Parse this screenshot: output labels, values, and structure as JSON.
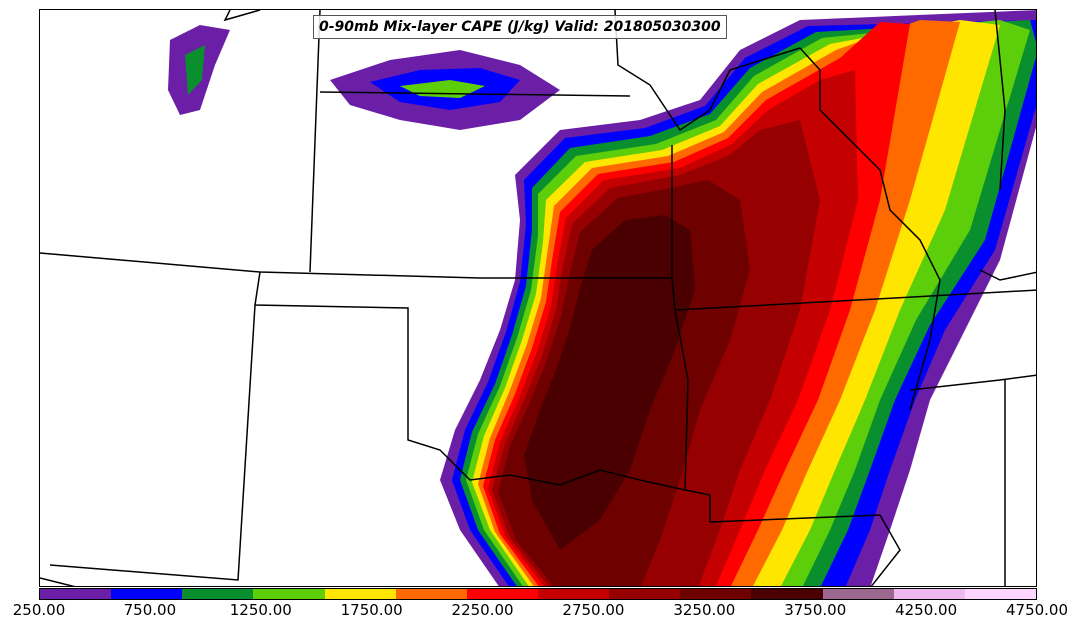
{
  "title": "0-90mb Mix-layer CAPE (J/kg) Valid: 201805030300",
  "colorbar": {
    "colors": [
      "#6a1fa6",
      "#0000ff",
      "#0a8f2e",
      "#5ccf0a",
      "#ffe600",
      "#ff6a00",
      "#ff0000",
      "#c40000",
      "#960000",
      "#6e0000",
      "#4a0000",
      "#9c6890",
      "#f0b8f0",
      "#ffd6ff"
    ],
    "tick_labels": [
      "250.00",
      "750.00",
      "1250.00",
      "1750.00",
      "2250.00",
      "2750.00",
      "3250.00",
      "3750.00",
      "4250.00",
      "4750.00"
    ]
  },
  "icons": {
    "map": "cape-contour-map"
  }
}
